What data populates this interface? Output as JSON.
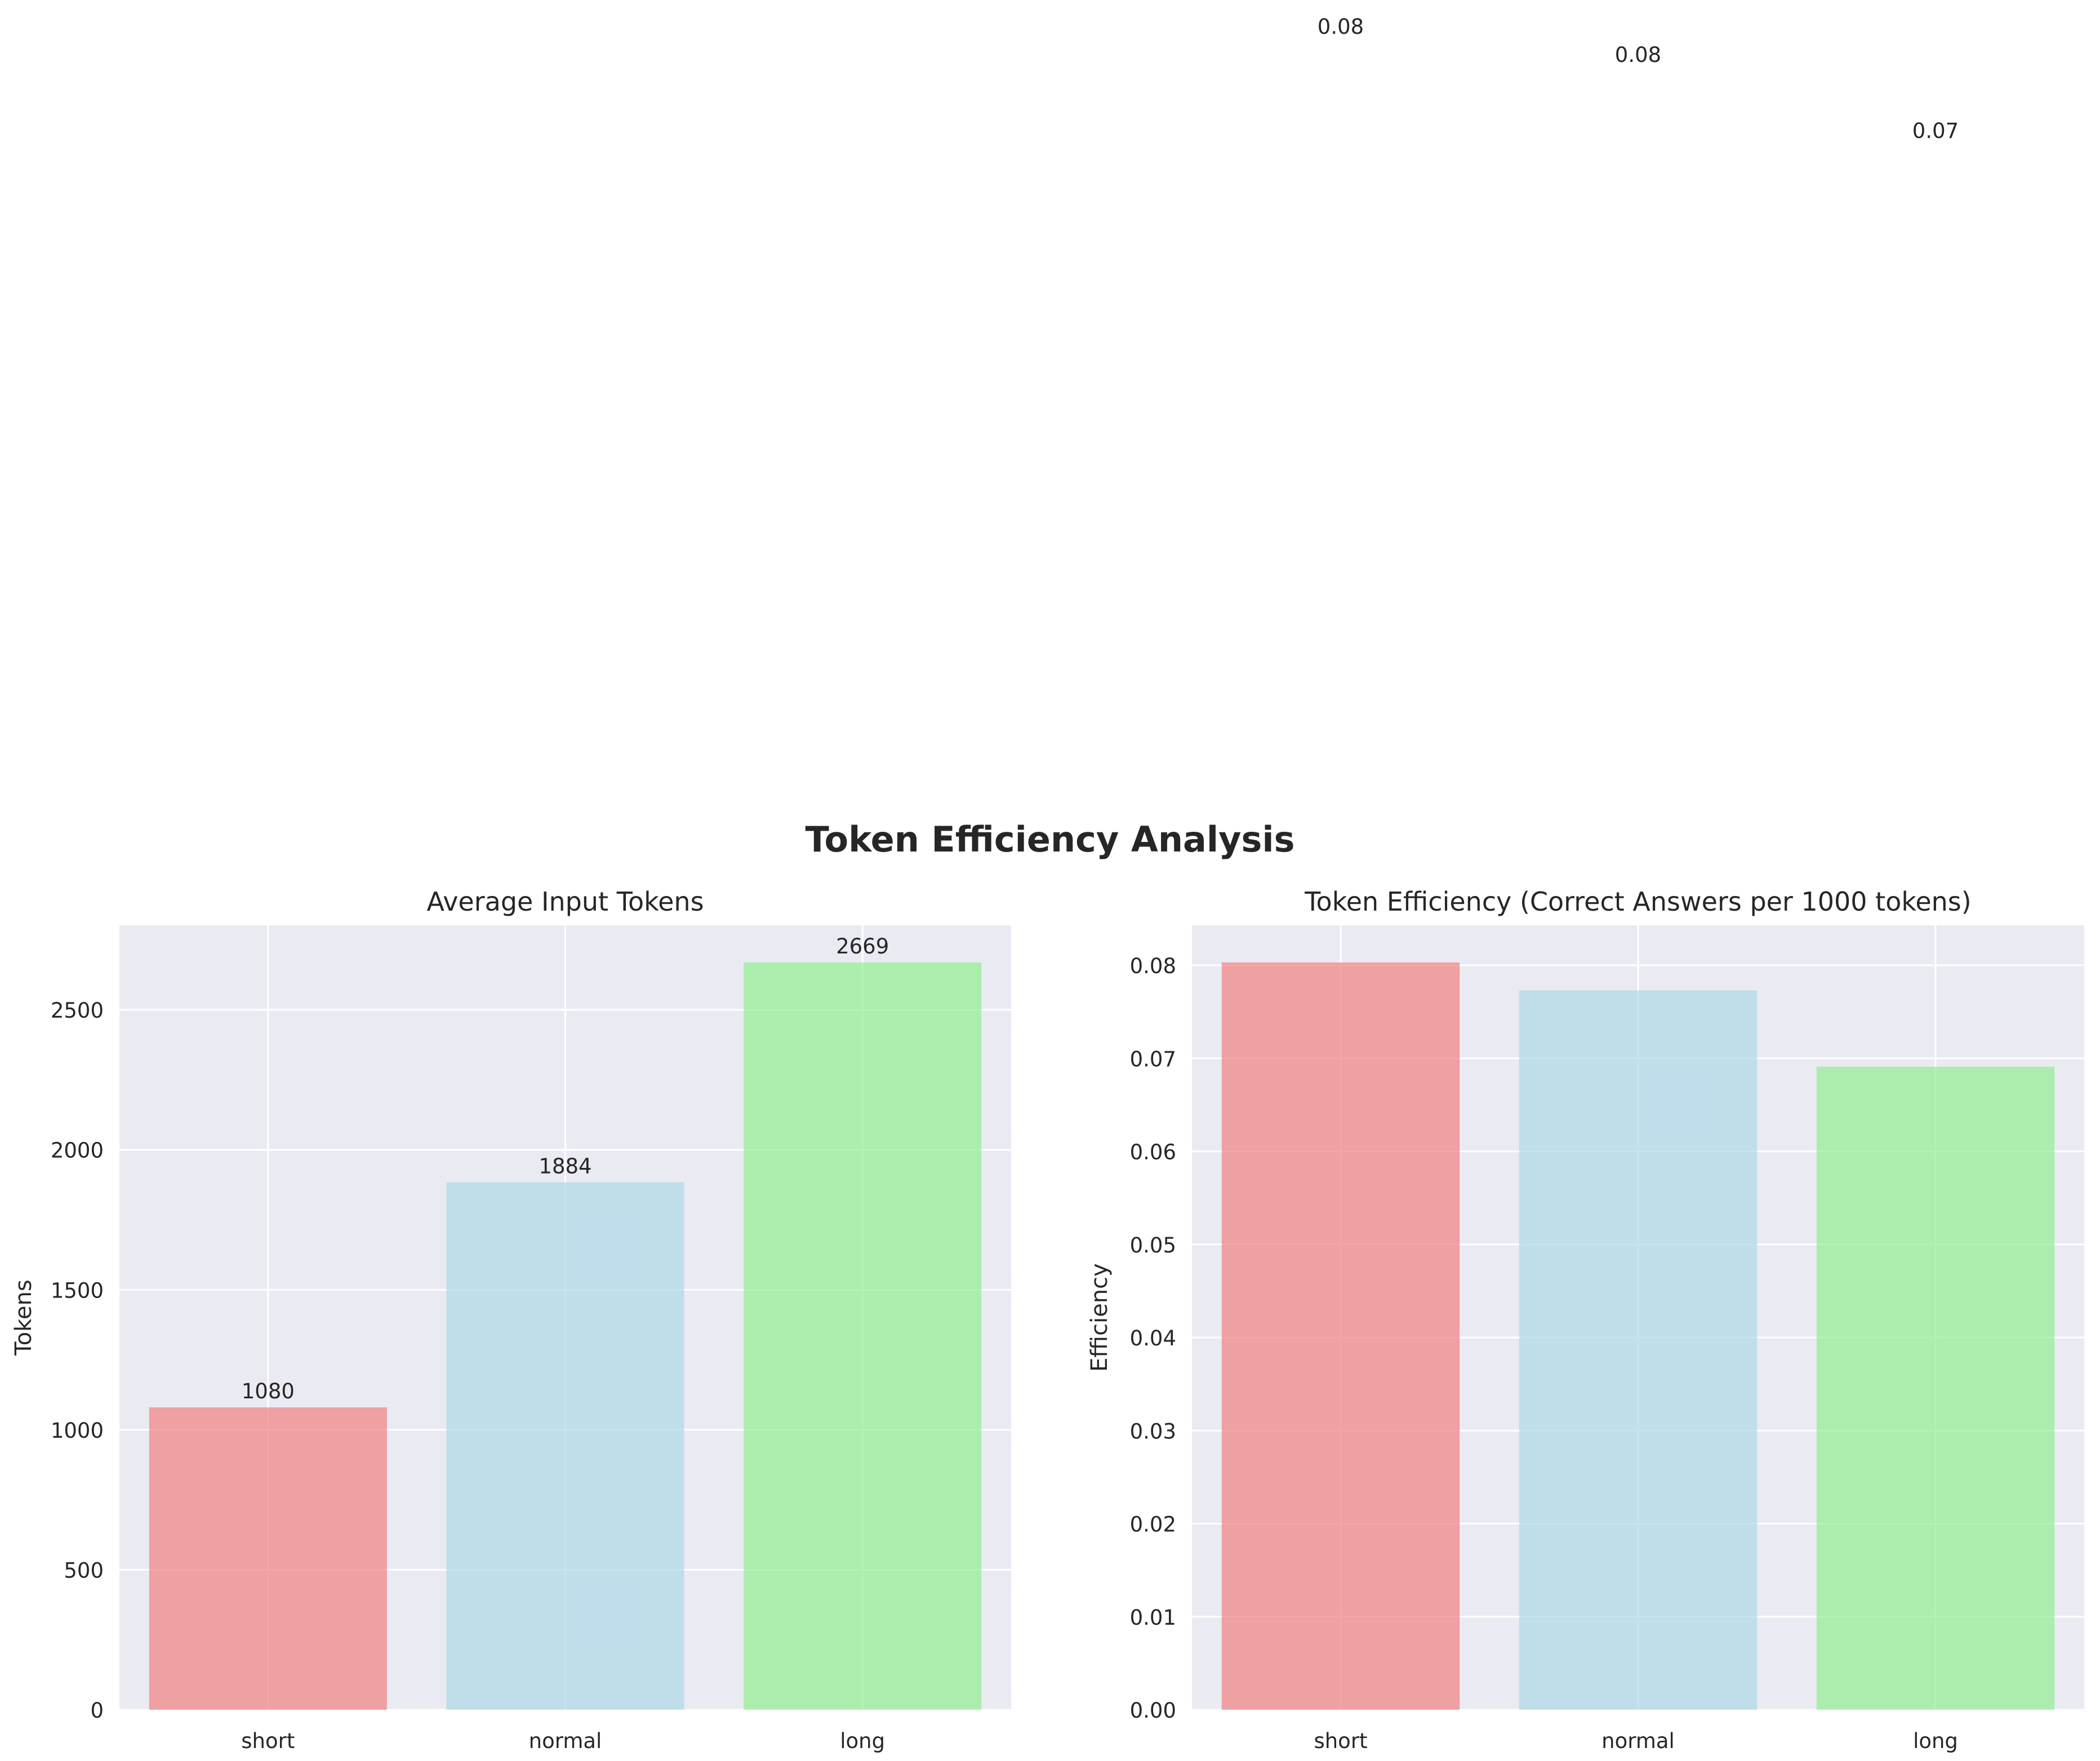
{
  "figure": {
    "suptitle": "Token Efficiency Analysis"
  },
  "chart_data": [
    {
      "type": "bar",
      "title": "Average Input Tokens",
      "xlabel": "",
      "ylabel": "Tokens",
      "categories": [
        "short",
        "normal",
        "long"
      ],
      "values": [
        1080,
        1884,
        2669
      ],
      "value_labels": [
        "1080",
        "1884",
        "2669"
      ],
      "colors": [
        "#f08080",
        "#add8e6",
        "#90ee90"
      ],
      "ylim": [
        0,
        2802
      ],
      "yticks": [
        0,
        500,
        1000,
        1500,
        2000,
        2500
      ],
      "ytick_labels": [
        "0",
        "500",
        "1000",
        "1500",
        "2000",
        "2500"
      ],
      "grid": true
    },
    {
      "type": "bar",
      "title": "Token Efficiency (Correct Answers per 1000 tokens)",
      "xlabel": "",
      "ylabel": "Efficiency",
      "categories": [
        "short",
        "normal",
        "long"
      ],
      "values": [
        0.0803,
        0.0773,
        0.0691
      ],
      "value_labels": [
        "0.08",
        "0.08",
        "0.07"
      ],
      "colors": [
        "#f08080",
        "#add8e6",
        "#90ee90"
      ],
      "ylim": [
        0,
        0.0843
      ],
      "yticks": [
        0,
        0.01,
        0.02,
        0.03,
        0.04,
        0.05,
        0.06,
        0.07,
        0.08
      ],
      "ytick_labels": [
        "0.00",
        "0.01",
        "0.02",
        "0.03",
        "0.04",
        "0.05",
        "0.06",
        "0.07",
        "0.08"
      ],
      "grid": true
    }
  ]
}
